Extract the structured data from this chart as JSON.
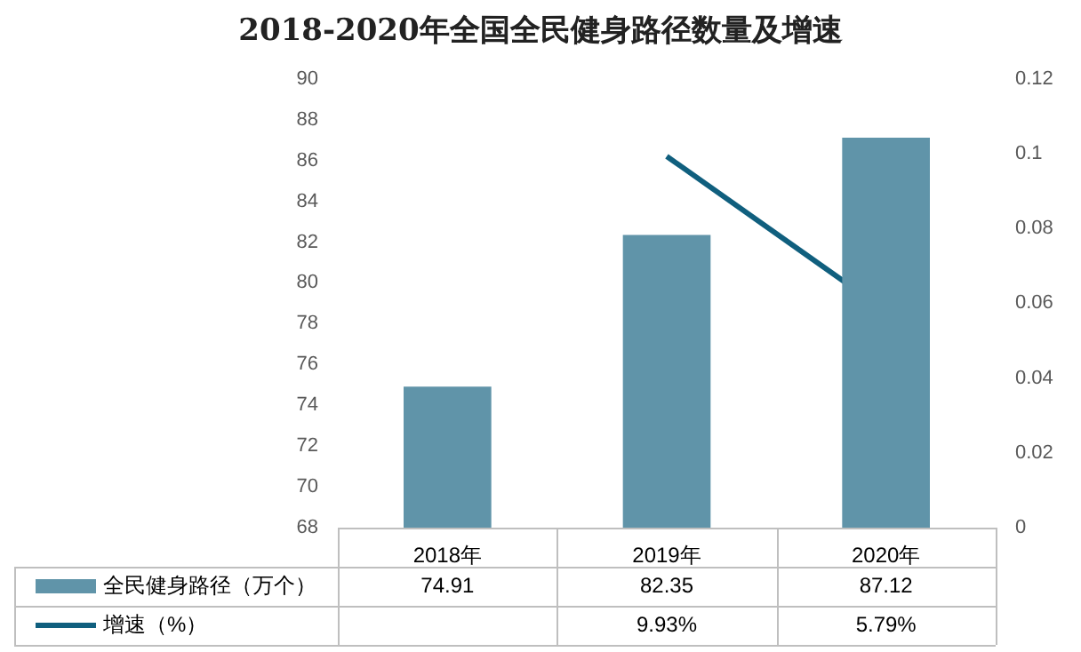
{
  "chart_data": {
    "type": "bar",
    "title": "2018-2020年全国全民健身路径数量及增速",
    "categories": [
      "2018年",
      "2019年",
      "2020年"
    ],
    "series": [
      {
        "name": "全民健身路径（万个）",
        "color": "#6094a9",
        "values": [
          74.91,
          82.35,
          87.12
        ],
        "value_labels": [
          "74.91",
          "82.35",
          "87.12"
        ]
      },
      {
        "name": "增速（%）",
        "type": "line",
        "axis": "y2",
        "color": "#105f7e",
        "values": [
          null,
          0.0993,
          0.0579
        ],
        "value_labels": [
          null,
          "9.93%",
          "5.79%"
        ]
      }
    ],
    "ylim": [
      68,
      90
    ],
    "yticks": [
      68,
      70,
      72,
      74,
      76,
      78,
      80,
      82,
      84,
      86,
      88,
      90
    ],
    "y2lim": [
      0,
      0.12
    ],
    "y2ticks": [
      0,
      0.02,
      0.04,
      0.06,
      0.08,
      0.1,
      0.12
    ],
    "grid": false,
    "legend": "bottom",
    "marker": "none"
  }
}
